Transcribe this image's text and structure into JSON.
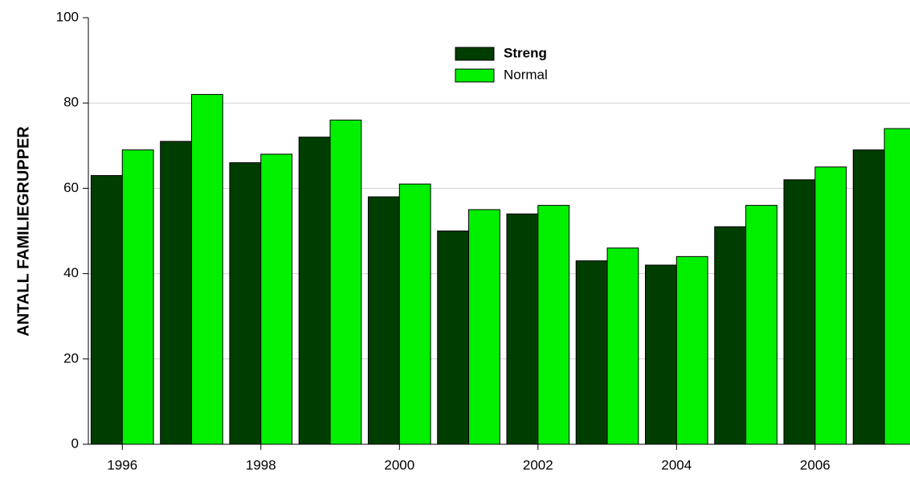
{
  "chart_data": {
    "type": "bar",
    "ylabel": "ANTALL FAMILIEGRUPPER",
    "x": [
      1996,
      1997,
      1998,
      1999,
      2000,
      2001,
      2002,
      2003,
      2004,
      2005,
      2006,
      2007
    ],
    "series": [
      {
        "name": "Streng",
        "color": "#003d00",
        "values": [
          63,
          71,
          66,
          72,
          58,
          50,
          54,
          43,
          42,
          51,
          62,
          69
        ]
      },
      {
        "name": "Normal",
        "color": "#00f000",
        "values": [
          69,
          82,
          68,
          76,
          61,
          55,
          56,
          46,
          44,
          56,
          65,
          74
        ]
      }
    ],
    "xlim": [
      1995.51,
      2007.37
    ],
    "xticks": [
      1996,
      1998,
      2000,
      2002,
      2004,
      2006
    ],
    "ylim": [
      0,
      100
    ],
    "yticks": [
      0,
      20,
      40,
      60,
      80,
      100
    ],
    "grid": true,
    "legend": "top"
  }
}
